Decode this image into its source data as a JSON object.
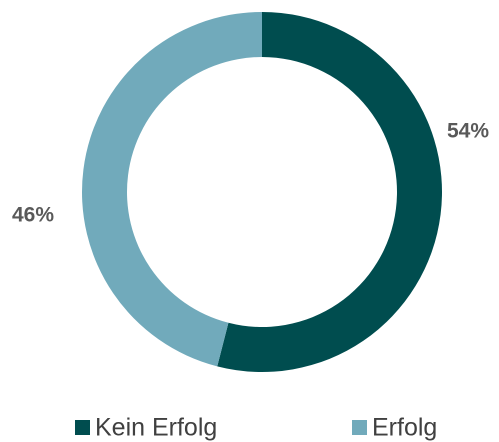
{
  "chart_data": {
    "type": "donut",
    "categories": [
      "Kein Erfolg",
      "Erfolg"
    ],
    "values": [
      54,
      46
    ],
    "value_labels": [
      "54%",
      "46%"
    ],
    "colors": [
      "#004d4f",
      "#71aabb"
    ],
    "legend": "bottom"
  }
}
